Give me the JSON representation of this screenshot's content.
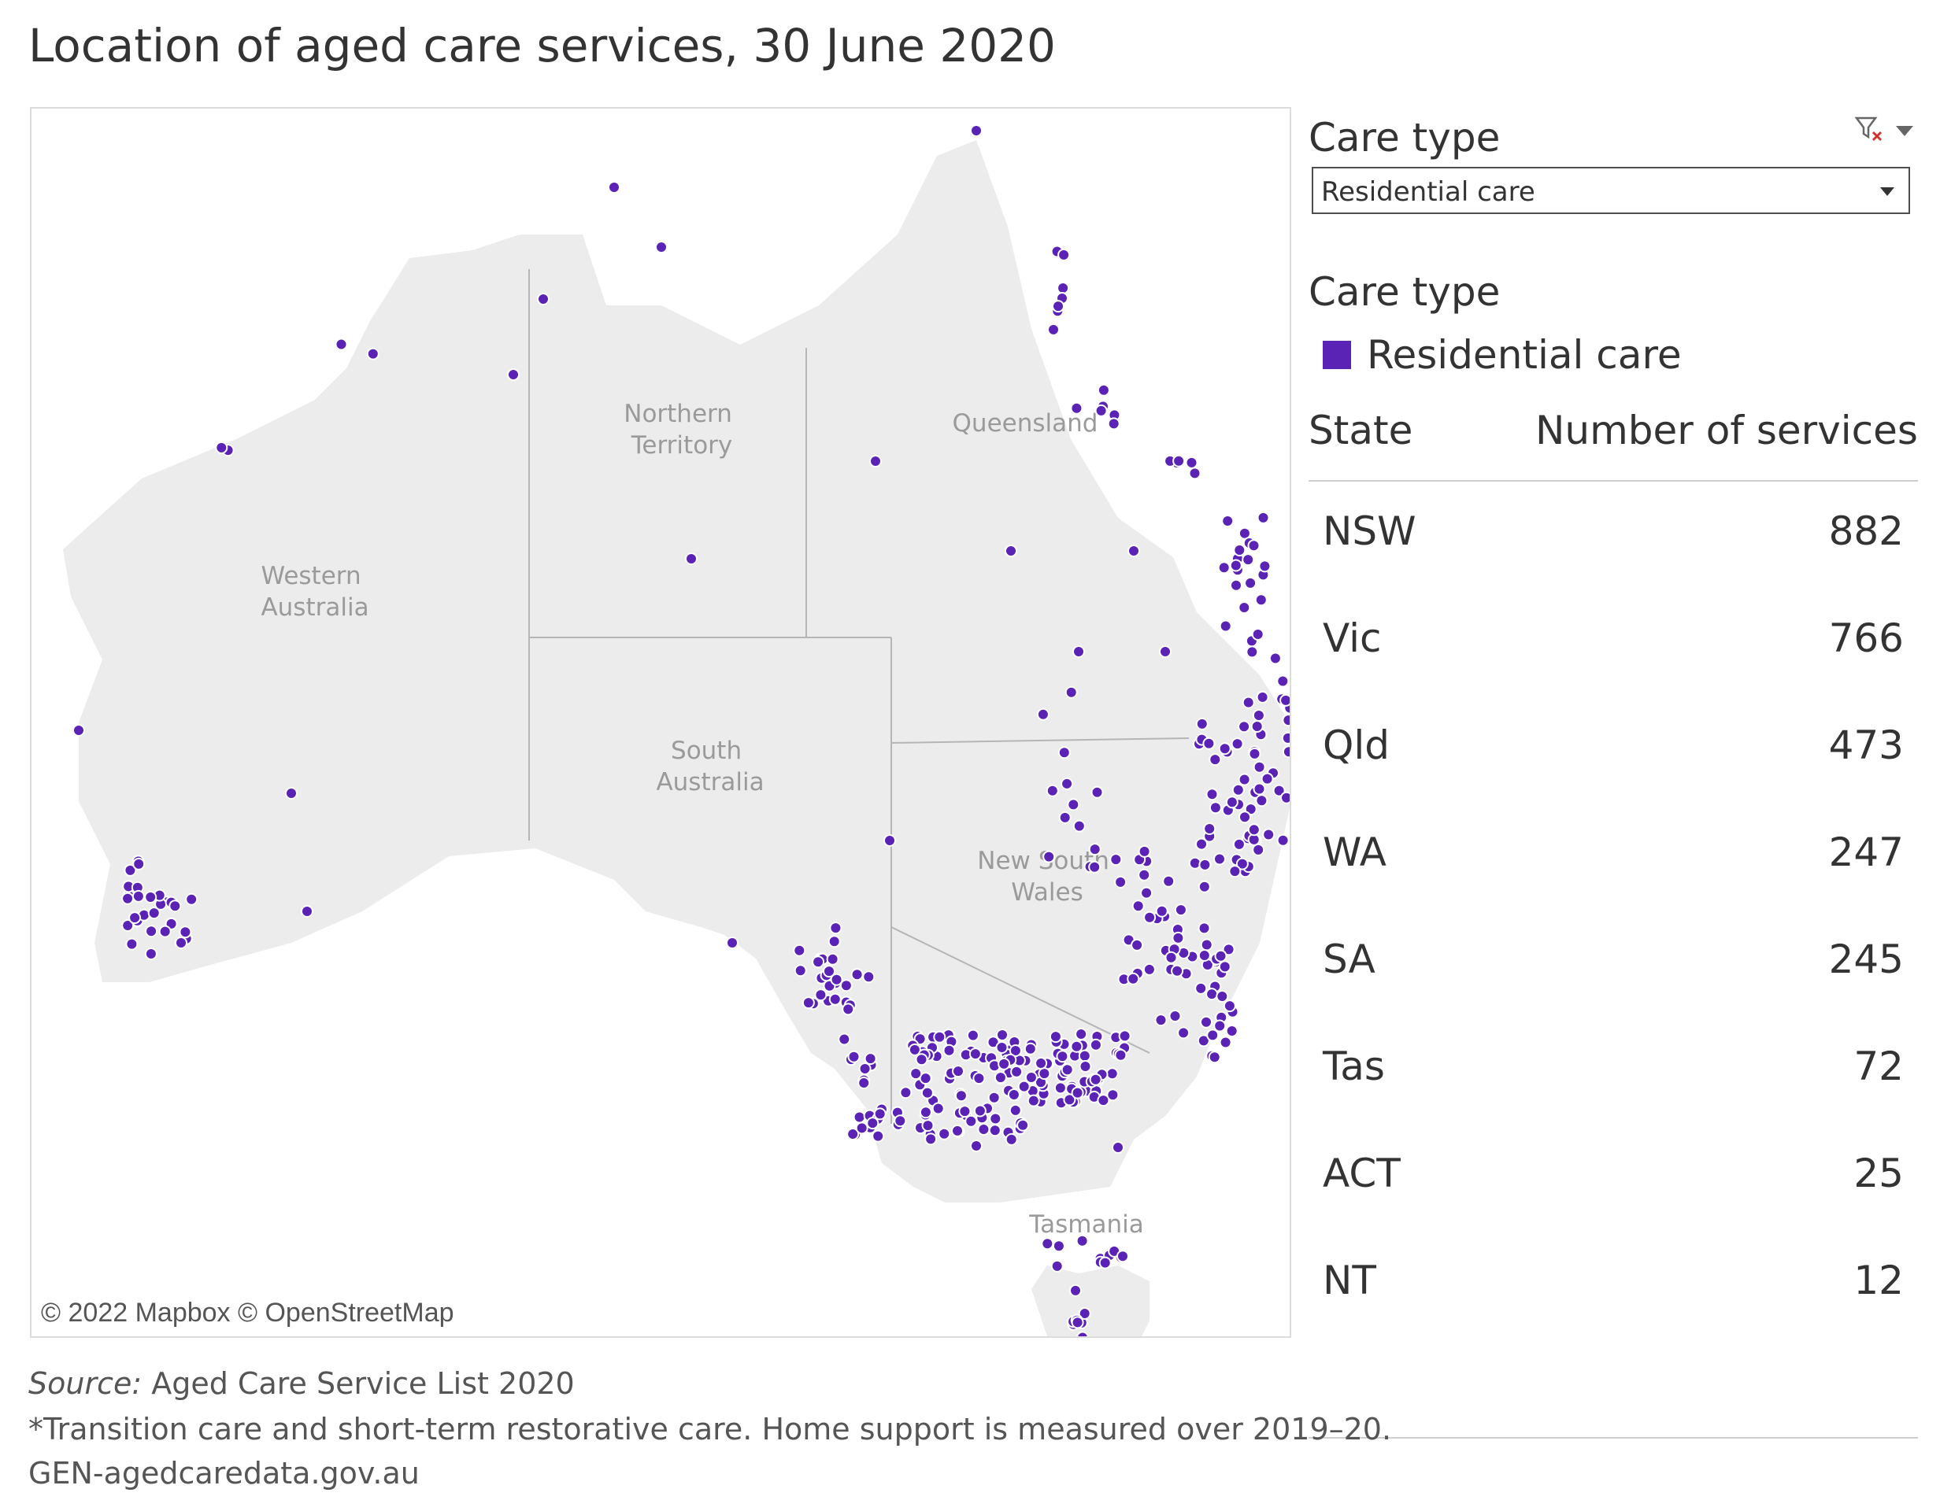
{
  "title": "Location of aged care services, 30 June 2020",
  "map": {
    "attribution": "© 2022 Mapbox  © OpenStreetMap",
    "region_labels": {
      "wa": [
        "Western",
        "Australia"
      ],
      "nt": [
        "Northern",
        "Territory"
      ],
      "qld": [
        "Queensland"
      ],
      "sa": [
        "South",
        "Australia"
      ],
      "nsw": [
        "New South",
        "Wales"
      ],
      "tas": [
        "Tasmania"
      ]
    },
    "land_color": "#ececec",
    "border_color": "#b5b5b5",
    "dot_color": "#5b23b5"
  },
  "filter": {
    "heading": "Care type",
    "selected": "Residential care"
  },
  "legend": {
    "heading": "Care type",
    "items": [
      {
        "label": "Residential care",
        "color": "#5b23b5"
      }
    ]
  },
  "table": {
    "col_state": "State",
    "col_number": "Number of services",
    "rows": [
      {
        "state": "NSW",
        "value": "882"
      },
      {
        "state": "Vic",
        "value": "766"
      },
      {
        "state": "Qld",
        "value": "473"
      },
      {
        "state": "WA",
        "value": "247"
      },
      {
        "state": "SA",
        "value": "245"
      },
      {
        "state": "Tas",
        "value": "72"
      },
      {
        "state": "ACT",
        "value": "25"
      },
      {
        "state": "NT",
        "value": "12"
      }
    ]
  },
  "footer": {
    "source_label": "Source:",
    "source_text": " Aged Care Service List 2020",
    "note": "*Transition care and short-term restorative care. Home support is measured over 2019–20.",
    "site": "GEN-agedcaredata.gov.au"
  }
}
